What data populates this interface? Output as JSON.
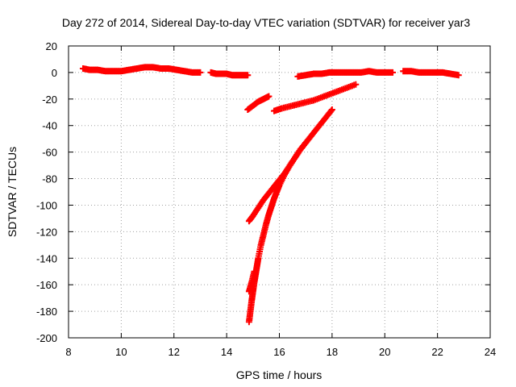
{
  "chart_data": {
    "type": "scatter",
    "title": "Day 272 of 2014, Sidereal Day-to-day VTEC variation (SDTVAR) for receiver yar3",
    "xlabel": "GPS time / hours",
    "ylabel": "SDTVAR / TECUs",
    "xlim": [
      8,
      24
    ],
    "ylim": [
      -200,
      20
    ],
    "xticks": [
      8,
      10,
      12,
      14,
      16,
      18,
      20,
      22,
      24
    ],
    "yticks": [
      20,
      0,
      -20,
      -40,
      -60,
      -80,
      -100,
      -120,
      -140,
      -160,
      -180,
      -200
    ],
    "grid": true,
    "marker": "plus",
    "color": "#ff0000",
    "series": [
      {
        "x": [
          8.55,
          8.8,
          9.1,
          9.4,
          9.7,
          10.0,
          10.3,
          10.6,
          10.9,
          11.2,
          11.5,
          11.8,
          12.1,
          12.4,
          12.7,
          13.0
        ],
        "y": [
          3,
          2,
          2,
          1,
          1,
          1,
          2,
          3,
          4,
          4,
          3,
          3,
          2,
          1,
          0,
          0
        ]
      },
      {
        "x": [
          13.4,
          13.6,
          13.8,
          14.0,
          14.2,
          14.4,
          14.6,
          14.8
        ],
        "y": [
          0,
          -1,
          -1,
          -1,
          -2,
          -2,
          -2,
          -2
        ]
      },
      {
        "x": [
          14.8,
          15.0,
          15.2,
          15.4,
          15.6
        ],
        "y": [
          -28,
          -25,
          -22,
          -20,
          -18
        ]
      },
      {
        "x": [
          15.8,
          16.1,
          16.5,
          16.9,
          17.3,
          17.7,
          18.1,
          18.5,
          18.9
        ],
        "y": [
          -29,
          -27,
          -25,
          -23,
          -21,
          -18,
          -15,
          -12,
          -9
        ]
      },
      {
        "x": [
          16.7,
          17.0,
          17.3,
          17.6,
          17.9,
          18.2,
          18.5,
          18.8,
          19.1,
          19.4,
          19.7,
          20.0,
          20.3
        ],
        "y": [
          -3,
          -2,
          -1,
          -1,
          0,
          0,
          0,
          0,
          0,
          1,
          0,
          0,
          0
        ]
      },
      {
        "x": [
          20.7,
          21.0,
          21.3,
          21.6,
          21.9,
          22.2,
          22.5,
          22.8
        ],
        "y": [
          1,
          1,
          0,
          0,
          0,
          0,
          -1,
          -2
        ]
      },
      {
        "x": [
          14.85,
          15.0,
          15.2,
          15.4,
          15.6,
          15.8,
          16.0,
          16.2,
          16.4,
          16.6,
          16.8,
          17.0,
          17.2,
          17.4,
          17.6,
          17.8,
          18.0
        ],
        "y": [
          -112,
          -108,
          -102,
          -96,
          -91,
          -86,
          -81,
          -76,
          -70,
          -64,
          -58,
          -53,
          -48,
          -43,
          -38,
          -33,
          -28
        ]
      },
      {
        "x": [
          14.85,
          14.9,
          14.95,
          15.0,
          15.05,
          15.1,
          15.15,
          15.2,
          15.3,
          15.4,
          15.5,
          15.6,
          15.7,
          15.8,
          15.9,
          16.0,
          16.2,
          16.4,
          16.6,
          16.8,
          17.0
        ],
        "y": [
          -188,
          -180,
          -172,
          -165,
          -158,
          -152,
          -146,
          -140,
          -130,
          -122,
          -114,
          -107,
          -101,
          -95,
          -90,
          -85,
          -77,
          -70,
          -64,
          -58,
          -53
        ]
      },
      {
        "x": [
          14.85,
          14.95,
          15.05
        ],
        "y": [
          -165,
          -158,
          -150
        ]
      }
    ]
  }
}
